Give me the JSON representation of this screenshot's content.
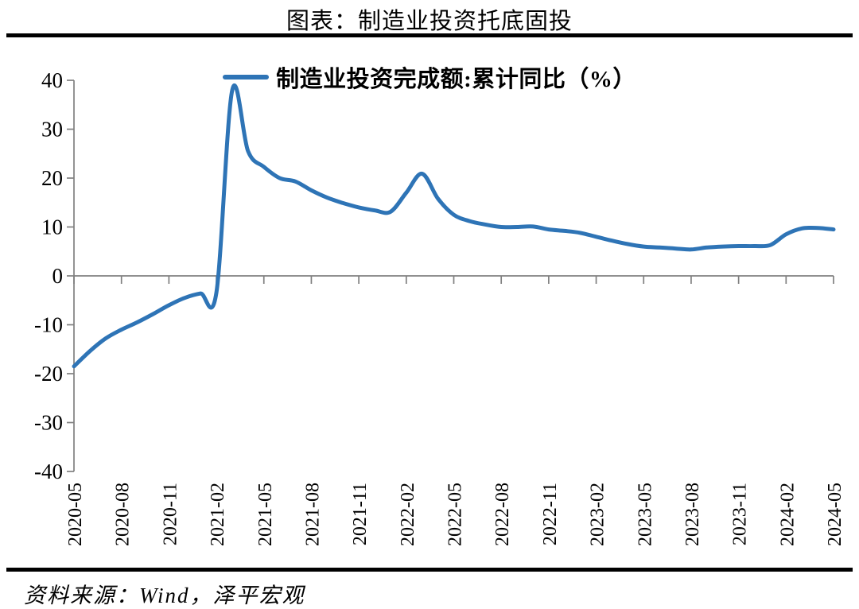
{
  "page": {
    "title": "图表：制造业投资托底固投",
    "source": "资料来源：Wind，泽平宏观"
  },
  "chart_data": {
    "type": "line",
    "title": "图表：制造业投资托底固投",
    "xlabel": "",
    "ylabel": "",
    "ylim": [
      -40,
      40
    ],
    "y_ticks": [
      40,
      30,
      20,
      10,
      0,
      -10,
      -20,
      -30,
      -40
    ],
    "grid": false,
    "legend_position": "top-center",
    "axis_color": "#808080",
    "x_tick_labels": [
      "2020-05",
      "2020-08",
      "2020-11",
      "2021-02",
      "2021-05",
      "2021-08",
      "2021-11",
      "2022-02",
      "2022-05",
      "2022-08",
      "2022-11",
      "2023-02",
      "2023-05",
      "2023-08",
      "2023-11",
      "2024-02",
      "2024-05"
    ],
    "series": [
      {
        "name": "制造业投资完成额:累计同比（%）",
        "color": "#2E74B6",
        "x": [
          "2020-05",
          "2020-06",
          "2020-07",
          "2020-08",
          "2020-09",
          "2020-10",
          "2020-11",
          "2020-12",
          "2021-01",
          "2021-02",
          "2021-03",
          "2021-04",
          "2021-05",
          "2021-06",
          "2021-07",
          "2021-08",
          "2021-09",
          "2021-10",
          "2021-11",
          "2021-12",
          "2022-01",
          "2022-02",
          "2022-03",
          "2022-04",
          "2022-05",
          "2022-06",
          "2022-07",
          "2022-08",
          "2022-09",
          "2022-10",
          "2022-11",
          "2022-12",
          "2023-01",
          "2023-02",
          "2023-03",
          "2023-04",
          "2023-05",
          "2023-06",
          "2023-07",
          "2023-08",
          "2023-09",
          "2023-10",
          "2023-11",
          "2023-12",
          "2024-01",
          "2024-02",
          "2024-03",
          "2024-04",
          "2024-05"
        ],
        "values": [
          -18.5,
          -15.4,
          -12.8,
          -11.0,
          -9.5,
          -7.8,
          -6.0,
          -4.5,
          -3.6,
          -3.4,
          38.0,
          25.5,
          22.3,
          20.0,
          19.3,
          17.5,
          16.0,
          14.9,
          14.0,
          13.4,
          13.1,
          17.0,
          20.9,
          15.8,
          12.5,
          11.2,
          10.5,
          10.0,
          10.0,
          10.1,
          9.5,
          9.2,
          8.8,
          8.0,
          7.2,
          6.5,
          6.0,
          5.8,
          5.6,
          5.4,
          5.8,
          6.0,
          6.1,
          6.1,
          6.3,
          8.5,
          9.7,
          9.8,
          9.5
        ]
      }
    ]
  }
}
